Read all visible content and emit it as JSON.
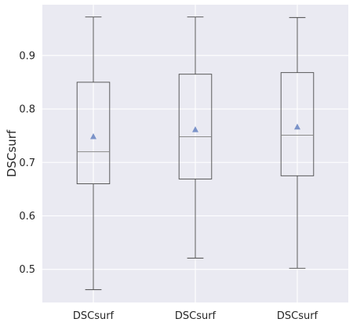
{
  "chart_data": {
    "type": "box",
    "ylabel": "DSCsurf",
    "xlabel": "",
    "ylim": [
      0.438,
      0.995
    ],
    "yticks": [
      0.5,
      0.6,
      0.7,
      0.8,
      0.9
    ],
    "grid": true,
    "colors": {
      "background": "#eaeaf2",
      "grid": "#ffffff",
      "box": "#4a4a4a",
      "median": "#8a8a8a",
      "mean_marker": "#7b93c9"
    },
    "boxes": [
      {
        "label": "DSCsurf",
        "whislo": 0.462,
        "q1": 0.66,
        "median": 0.72,
        "q3": 0.85,
        "whishi": 0.972,
        "mean": 0.748
      },
      {
        "label": "DSCsurf",
        "whislo": 0.521,
        "q1": 0.669,
        "median": 0.748,
        "q3": 0.865,
        "whishi": 0.972,
        "mean": 0.761
      },
      {
        "label": "DSCsurf",
        "whislo": 0.502,
        "q1": 0.675,
        "median": 0.751,
        "q3": 0.868,
        "whishi": 0.971,
        "mean": 0.766
      }
    ]
  }
}
